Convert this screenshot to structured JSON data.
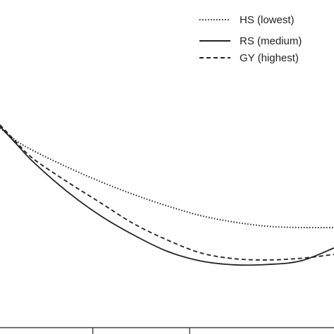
{
  "chart_data": {
    "type": "line",
    "title": "",
    "xlabel": "",
    "ylabel": "",
    "grid": false,
    "legend_position": "top-right",
    "x_range": [
      0,
      10
    ],
    "y_range": [
      0,
      10
    ],
    "series": [
      {
        "name": "HS (lowest)",
        "style": "dotted",
        "color": "#222222",
        "points": [
          [
            0,
            6.05
          ],
          [
            0.5,
            5.65
          ],
          [
            1,
            5.35
          ],
          [
            2,
            4.85
          ],
          [
            3,
            4.4
          ],
          [
            4,
            4.0
          ],
          [
            5,
            3.65
          ],
          [
            6,
            3.35
          ],
          [
            7,
            3.15
          ],
          [
            8,
            3.02
          ],
          [
            9,
            2.98
          ],
          [
            10,
            2.98
          ]
        ]
      },
      {
        "name": "RS (medium)",
        "style": "solid",
        "color": "#222222",
        "points": [
          [
            0,
            6.1
          ],
          [
            0.5,
            5.55
          ],
          [
            1,
            5.0
          ],
          [
            2,
            4.1
          ],
          [
            3,
            3.35
          ],
          [
            4,
            2.75
          ],
          [
            5,
            2.25
          ],
          [
            6,
            1.95
          ],
          [
            7,
            1.83
          ],
          [
            8,
            1.84
          ],
          [
            9,
            1.95
          ],
          [
            10,
            2.35
          ]
        ]
      },
      {
        "name": "GY (highest)",
        "style": "dashed",
        "color": "#222222",
        "points": [
          [
            0,
            6.15
          ],
          [
            0.5,
            5.6
          ],
          [
            1,
            5.1
          ],
          [
            2,
            4.4
          ],
          [
            3,
            3.75
          ],
          [
            4,
            3.1
          ],
          [
            5,
            2.6
          ],
          [
            6,
            2.2
          ],
          [
            7,
            2.02
          ],
          [
            8,
            1.98
          ],
          [
            9,
            2.03
          ],
          [
            10,
            2.15
          ]
        ]
      }
    ],
    "axis": {
      "x_tick_positions": [
        2.15,
        5.1,
        8.0
      ]
    }
  }
}
